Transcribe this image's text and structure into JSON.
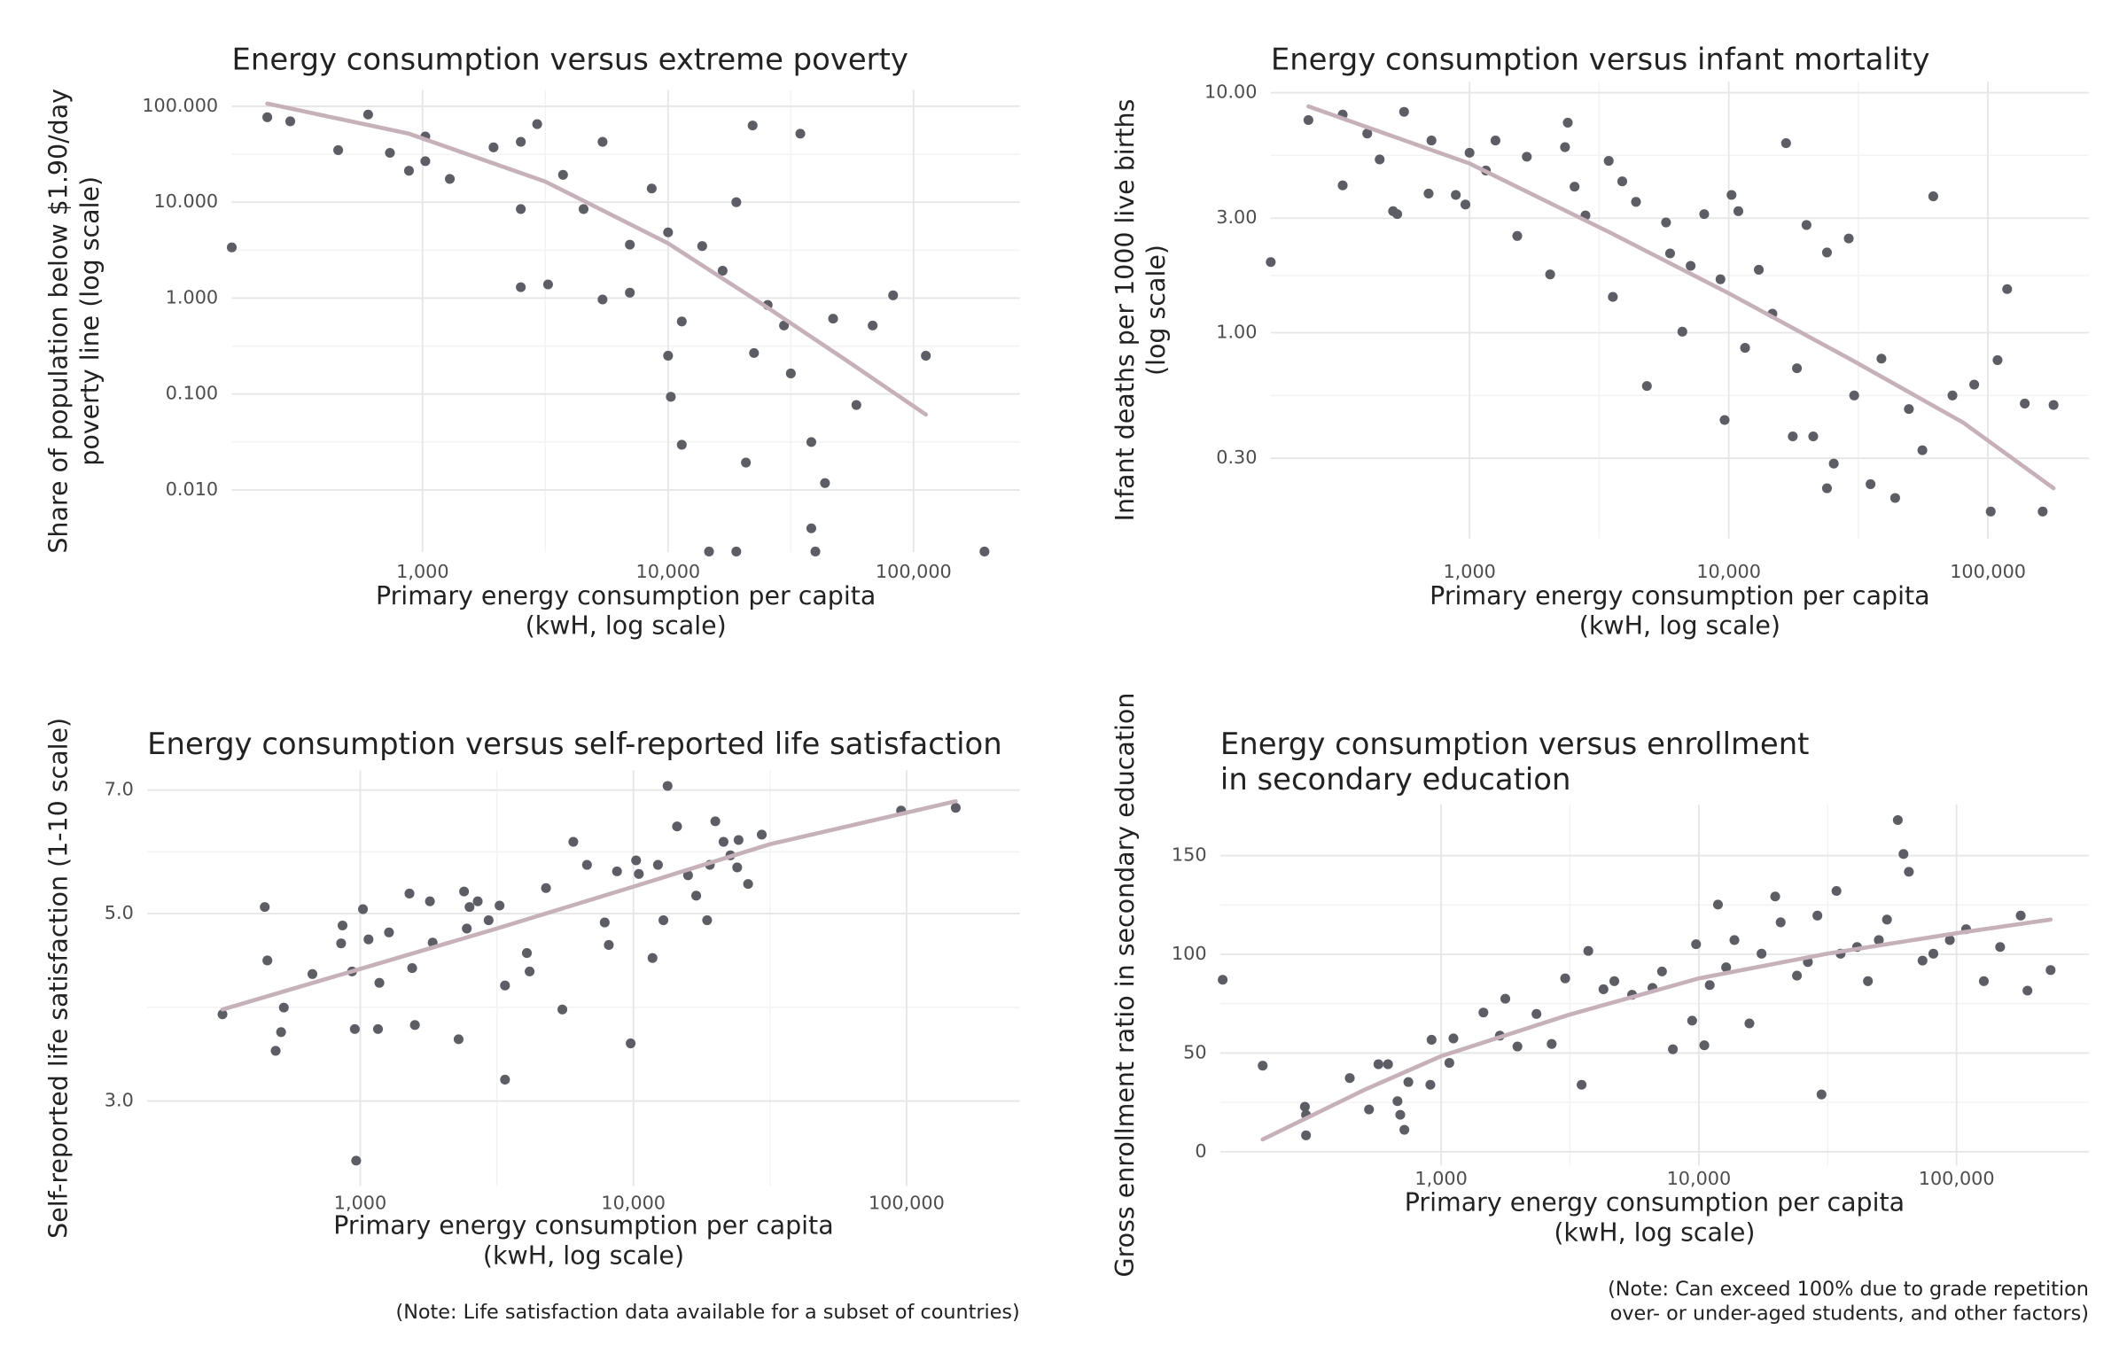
{
  "chart_data": [
    {
      "type": "scatter",
      "title": "Energy consumption versus extreme poverty",
      "xlabel": [
        "Primary energy consumption per capita",
        "(kwH, log scale)"
      ],
      "ylabel": [
        "Share of population below $1.90/day",
        "poverty line (log scale)"
      ],
      "xscale": "log",
      "yscale": "log",
      "grid": true,
      "xlim": [
        167,
        271000
      ],
      "ylim": [
        0.00225,
        148
      ],
      "xticks": [
        {
          "value": 1000,
          "label": "1,000"
        },
        {
          "value": 10000,
          "label": "10,000"
        },
        {
          "value": 100000,
          "label": "100,000"
        }
      ],
      "yticks": [
        {
          "value": 0.01,
          "label": "0.010"
        },
        {
          "value": 0.1,
          "label": "0.100"
        },
        {
          "value": 1,
          "label": "1.000"
        },
        {
          "value": 10,
          "label": "10.000"
        },
        {
          "value": 100,
          "label": "100.000"
        }
      ],
      "color": "#5d5d65",
      "x": [
        167,
        233,
        289,
        453,
        600,
        736,
        880,
        1026,
        1026,
        1291,
        1945,
        2512,
        2512,
        2929,
        2512,
        3244,
        3733,
        4526,
        5408,
        5408,
        6986,
        6986,
        8577,
        10000,
        10000,
        10260,
        11370,
        13770,
        14680,
        16680,
        18960,
        18960,
        22100,
        22390,
        25450,
        29660,
        34560,
        38320,
        39810,
        43570,
        47010,
        58480,
        68130,
        82520,
        112200,
        194500,
        20750,
        38320,
        31620,
        11370
      ],
      "values": [
        3.38,
        76.9,
        69.7,
        34.9,
        82.1,
        32.7,
        21.3,
        48.5,
        26.8,
        17.5,
        37.3,
        42.6,
        8.49,
        65.2,
        1.3,
        1.39,
        19.3,
        8.49,
        42.6,
        0.968,
        1.14,
        3.61,
        13.9,
        4.85,
        0.251,
        0.0936,
        0.571,
        3.49,
        0.00228,
        1.93,
        10,
        0.00228,
        63.1,
        0.268,
        0.849,
        0.518,
        51.8,
        0.0316,
        0.00228,
        0.0118,
        0.611,
        0.0769,
        0.518,
        1.07,
        0.251,
        0.00228,
        0.0193,
        0.00398,
        0.164,
        0.0296
      ],
      "trend": {
        "color": "#c6b0b9",
        "x": [
          233,
          880,
          3162,
          10000,
          24480,
          52720,
          112200
        ],
        "values": [
          106.8,
          51.8,
          16.4,
          3.73,
          0.849,
          0.228,
          0.0611
        ]
      }
    },
    {
      "type": "scatter",
      "title": "Energy consumption versus infant mortality",
      "xlabel": [
        "Primary energy consumption per capita",
        "(kwH, log scale)"
      ],
      "ylabel": [
        "Infant deaths per 1000 live births",
        "(log scale)"
      ],
      "xscale": "log",
      "yscale": "log",
      "grid": true,
      "xlim": [
        171,
        245000
      ],
      "ylim": [
        0.139,
        11.1
      ],
      "xticks": [
        {
          "value": 1000,
          "label": "1,000"
        },
        {
          "value": 10000,
          "label": "10,000"
        },
        {
          "value": 100000,
          "label": "100,000"
        }
      ],
      "yticks": [
        {
          "value": 0.3,
          "label": "0.30"
        },
        {
          "value": 1,
          "label": "1.00"
        },
        {
          "value": 3,
          "label": "3.00"
        },
        {
          "value": 10,
          "label": "10.00"
        }
      ],
      "color": "#5d5d65",
      "x": [
        171,
        239,
        324,
        324,
        403,
        450,
        507,
        526,
        559,
        695,
        713,
        885,
        964,
        1000,
        1156,
        1259,
        1528,
        1663,
        2046,
        2335,
        2393,
        2542,
        2800,
        3443,
        3571,
        3883,
        4387,
        4833,
        5728,
        5939,
        6622,
        7129,
        8041,
        9290,
        9640,
        10250,
        10890,
        11560,
        13060,
        14740,
        16640,
        18330,
        19950,
        21180,
        23930,
        25420,
        29040,
        30480,
        35240,
        38820,
        43850,
        49540,
        55850,
        61520,
        72950,
        88510,
        102500,
        108900,
        118600,
        138700,
        162600,
        179100,
        23930,
        17660
      ],
      "values": [
        1.97,
        7.69,
        8.11,
        4.11,
        6.76,
        5.27,
        3.21,
        3.12,
        8.32,
        3.8,
        6.32,
        3.75,
        3.42,
        5.62,
        4.74,
        6.32,
        2.53,
        5.41,
        1.75,
        5.93,
        7.5,
        4.06,
        3.08,
        5.2,
        1.41,
        4.27,
        3.51,
        0.6,
        2.88,
        2.14,
        1.01,
        1.9,
        3.12,
        1.67,
        0.433,
        3.75,
        3.21,
        0.865,
        1.83,
        1.2,
        6.16,
        0.711,
        2.81,
        0.37,
        2.16,
        0.285,
        2.47,
        0.548,
        0.234,
        0.78,
        0.205,
        0.481,
        0.324,
        3.7,
        0.548,
        0.608,
        0.18,
        0.769,
        1.52,
        0.507,
        0.18,
        0.5,
        0.225,
        0.37
      ],
      "trend": {
        "color": "#c6b0b9",
        "x": [
          239,
          1000,
          3443,
          10000,
          30480,
          80350,
          179100
        ],
        "values": [
          8.77,
          5.07,
          2.63,
          1.46,
          0.76,
          0.422,
          0.225
        ]
      }
    },
    {
      "type": "scatter",
      "title": "Energy consumption versus self-reported life satisfaction",
      "xlabel": [
        "Primary energy consumption per capita",
        "(kwH, log scale)"
      ],
      "ylabel": [
        "Self-reported life satisfaction (1-10 scale)"
      ],
      "xscale": "log",
      "yscale": "log",
      "grid": true,
      "xlim": [
        166,
        260000
      ],
      "ylim": [
        2.38,
        7.39
      ],
      "xticks": [
        {
          "value": 1000,
          "label": "1,000"
        },
        {
          "value": 10000,
          "label": "10,000"
        },
        {
          "value": 100000,
          "label": "100,000"
        }
      ],
      "yticks": [
        {
          "value": 3,
          "label": "3.0"
        },
        {
          "value": 5,
          "label": "5.0"
        },
        {
          "value": 7,
          "label": "7.0"
        }
      ],
      "color": "#5d5d65",
      "x": [
        313,
        447,
        457,
        490,
        513,
        525,
        668,
        851,
        861,
        933,
        955,
        966,
        1023,
        1072,
        1161,
        1175,
        1274,
        1514,
        1549,
        1585,
        1799,
        1841,
        2291,
        2399,
        2455,
        2512,
        2692,
        2951,
        3236,
        3388,
        3388,
        4074,
        4169,
        4786,
        5495,
        6026,
        6761,
        7852,
        8128,
        8710,
        9772,
        10230,
        10470,
        11750,
        12300,
        12880,
        13340,
        14450,
        15850,
        16980,
        18620,
        19050,
        19950,
        21380,
        22650,
        23990,
        24270,
        26300,
        29510,
        95500,
        151400
      ],
      "values": [
        3.8,
        5.09,
        4.4,
        3.44,
        3.62,
        3.87,
        4.24,
        4.61,
        4.84,
        4.27,
        3.65,
        2.55,
        5.06,
        4.66,
        3.65,
        4.14,
        4.75,
        5.28,
        4.31,
        3.69,
        5.17,
        4.62,
        3.55,
        5.31,
        4.8,
        5.09,
        5.17,
        4.91,
        5.11,
        4.11,
        3.18,
        4.49,
        4.27,
        5.36,
        3.85,
        6.08,
        5.71,
        4.88,
        4.59,
        5.61,
        3.51,
        5.78,
        5.57,
        4.43,
        5.71,
        4.91,
        7.08,
        6.34,
        5.55,
        5.25,
        4.91,
        5.71,
        6.43,
        6.08,
        5.86,
        5.67,
        6.11,
        5.42,
        6.2,
        6.62,
        6.67
      ],
      "trend": {
        "color": "#c6b0b9",
        "x": [
          313,
          1000,
          3162,
          10000,
          31620,
          151400
        ],
        "values": [
          3.85,
          4.3,
          4.8,
          5.38,
          6.04,
          6.79
        ]
      },
      "note": [
        "(Note: Life satisfaction data available for a subset of countries)"
      ]
    },
    {
      "type": "scatter",
      "title": [
        "Energy consumption versus enrollment",
        "in secondary education"
      ],
      "xlabel": [
        "Primary energy consumption per capita",
        "(kwH, log scale)"
      ],
      "ylabel": [
        "Gross enrollment ratio in secondary education"
      ],
      "xscale": "log",
      "yscale": "linear",
      "grid": true,
      "xlim": [
        139,
        326000
      ],
      "ylim": [
        -7,
        176
      ],
      "xticks": [
        {
          "value": 1000,
          "label": "1,000"
        },
        {
          "value": 10000,
          "label": "10,000"
        },
        {
          "value": 100000,
          "label": "100,000"
        }
      ],
      "yticks": [
        0,
        50,
        100,
        150
      ],
      "color": "#5d5d65",
      "x": [
        142,
        203,
        296,
        299,
        299,
        442,
        525,
        571,
        622,
        677,
        694,
        720,
        746,
        908,
        918,
        1076,
        1116,
        1459,
        1690,
        1774,
        1977,
        2344,
        2685,
        3029,
        3508,
        3724,
        4265,
        4699,
        5508,
        6607,
        7194,
        7930,
        9419,
        9755,
        10500,
        11020,
        11860,
        12760,
        13740,
        15710,
        17510,
        19780,
        20770,
        24030,
        26490,
        28840,
        29920,
        34200,
        35480,
        41110,
        45290,
        49930,
        53700,
        59160,
        62230,
        65310,
        73790,
        81280,
        94170,
        108900,
        127600,
        147600,
        177400,
        188400,
        231700
      ],
      "values": [
        87.1,
        43.6,
        22.8,
        18.7,
        8.3,
        37.3,
        21.4,
        44.3,
        44.3,
        25.6,
        18.7,
        11.1,
        35.3,
        33.9,
        56.7,
        45.0,
        57.4,
        70.5,
        58.8,
        77.5,
        53.3,
        69.8,
        54.6,
        87.8,
        33.9,
        101.7,
        82.3,
        86.4,
        79.5,
        83.0,
        91.3,
        51.9,
        66.4,
        105.1,
        53.9,
        84.4,
        125.2,
        93.4,
        107.2,
        65.0,
        100.3,
        129.3,
        116.2,
        89.2,
        96.1,
        119.6,
        29.0,
        132.1,
        100.3,
        103.7,
        86.4,
        107.2,
        117.6,
        168.0,
        150.8,
        141.8,
        96.8,
        100.3,
        107.2,
        112.7,
        86.4,
        103.7,
        119.6,
        81.6,
        92.0
      ],
      "trend": {
        "color": "#c6b0b9",
        "x": [
          203,
          499,
          1000,
          3105,
          10000,
          31410,
          100000,
          231700
        ],
        "values": [
          6.2,
          31.1,
          48.4,
          69.2,
          87.8,
          100.3,
          110.7,
          117.6
        ]
      },
      "note": [
        "(Note: Can exceed 100% due to grade repetition",
        "over- or under-aged students, and other factors)"
      ]
    }
  ]
}
